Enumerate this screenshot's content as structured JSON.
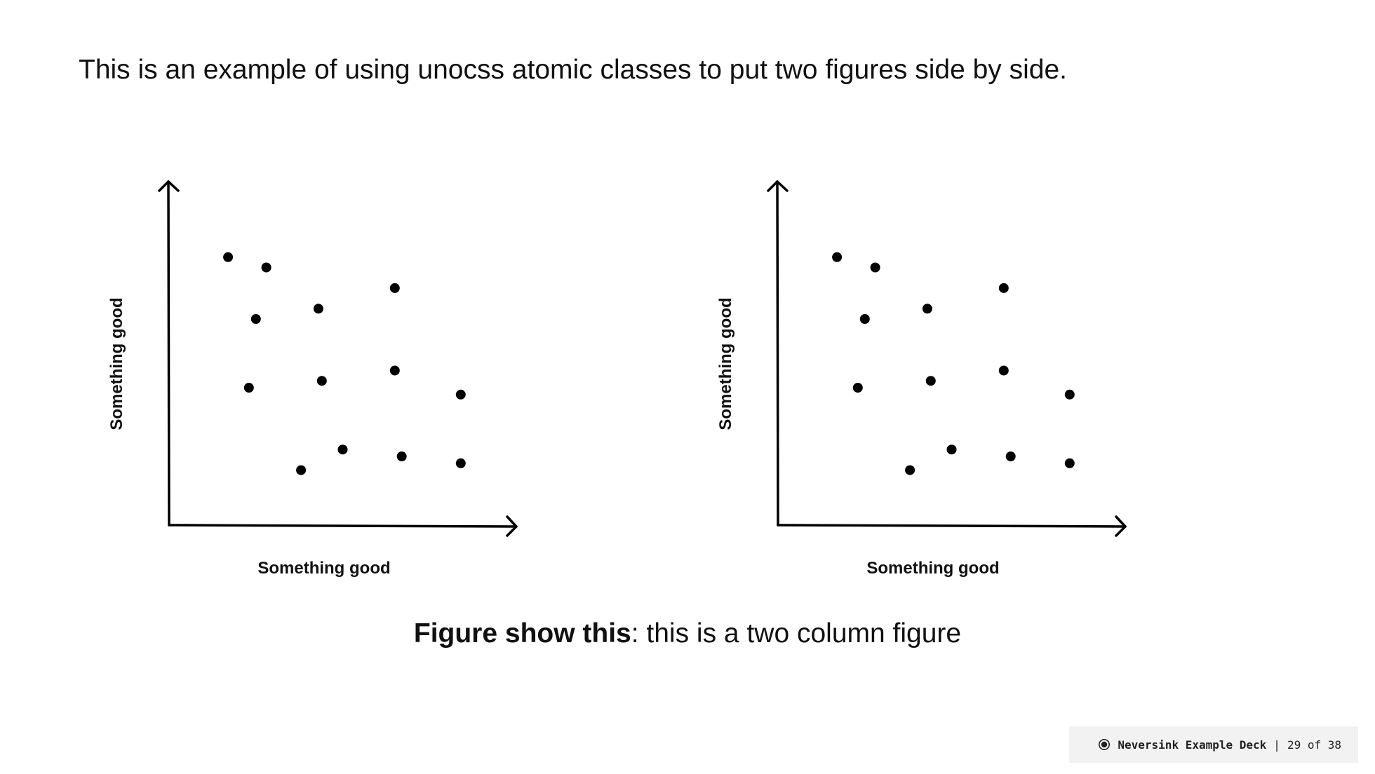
{
  "slide": {
    "intro_text": "This is an example of using unocss atomic classes to put two figures side by side.",
    "caption_bold": "Figure show this",
    "caption_rest": ": this is a two column figure"
  },
  "footer": {
    "deck_title": "Neversink Example Deck",
    "separator": "|",
    "page_indicator": "29 of 38",
    "logo_icon": "record-icon"
  },
  "chart_data": [
    {
      "type": "scatter",
      "title": "",
      "xlabel": "Something good",
      "ylabel": "Something good",
      "xlim": [
        0,
        10
      ],
      "ylim": [
        0,
        10
      ],
      "grid": false,
      "tick_labels": false,
      "series": [
        {
          "points": [
            [
              1.7,
              7.8
            ],
            [
              2.8,
              7.5
            ],
            [
              2.5,
              6.0
            ],
            [
              4.3,
              6.3
            ],
            [
              6.5,
              6.9
            ],
            [
              2.3,
              4.0
            ],
            [
              4.4,
              4.2
            ],
            [
              6.5,
              4.5
            ],
            [
              8.4,
              3.8
            ],
            [
              5.0,
              2.2
            ],
            [
              6.7,
              2.0
            ],
            [
              3.8,
              1.6
            ],
            [
              8.4,
              1.8
            ]
          ]
        }
      ]
    },
    {
      "type": "scatter",
      "title": "",
      "xlabel": "Something good",
      "ylabel": "Something good",
      "xlim": [
        0,
        10
      ],
      "ylim": [
        0,
        10
      ],
      "grid": false,
      "tick_labels": false,
      "series": [
        {
          "points": [
            [
              1.7,
              7.8
            ],
            [
              2.8,
              7.5
            ],
            [
              2.5,
              6.0
            ],
            [
              4.3,
              6.3
            ],
            [
              6.5,
              6.9
            ],
            [
              2.3,
              4.0
            ],
            [
              4.4,
              4.2
            ],
            [
              6.5,
              4.5
            ],
            [
              8.4,
              3.8
            ],
            [
              5.0,
              2.2
            ],
            [
              6.7,
              2.0
            ],
            [
              3.8,
              1.6
            ],
            [
              8.4,
              1.8
            ]
          ]
        }
      ]
    }
  ]
}
